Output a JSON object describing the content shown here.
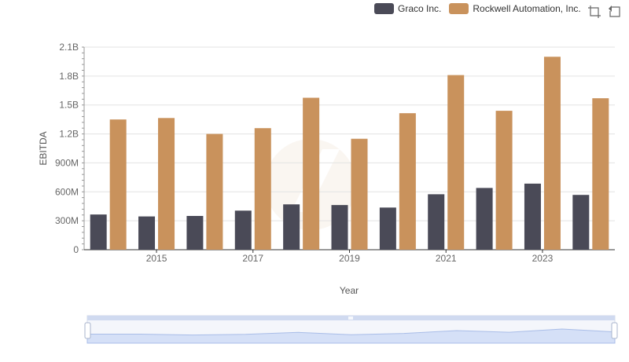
{
  "legend": [
    {
      "name": "Graco Inc.",
      "color": "#4a4a57"
    },
    {
      "name": "Rockwell Automation, Inc.",
      "color": "#c9925c"
    }
  ],
  "toolbar": {
    "zoom_icon": "zoom-select-icon",
    "restore_icon": "restore-icon"
  },
  "chart_data": {
    "type": "bar",
    "categories": [
      "2014",
      "2015",
      "2016",
      "2017",
      "2018",
      "2019",
      "2020",
      "2021",
      "2022",
      "2023",
      "2024"
    ],
    "x_tick_labels": [
      "2015",
      "2017",
      "2019",
      "2021",
      "2023"
    ],
    "series": [
      {
        "name": "Graco Inc.",
        "color": "#4a4a57",
        "values": [
          365000000,
          345000000,
          350000000,
          405000000,
          470000000,
          463000000,
          437000000,
          575000000,
          640000000,
          685000000,
          568000000
        ]
      },
      {
        "name": "Rockwell Automation, Inc.",
        "color": "#c9925c",
        "values": [
          1350000000,
          1365000000,
          1200000000,
          1260000000,
          1575000000,
          1150000000,
          1415000000,
          1810000000,
          1440000000,
          2000000000,
          1570000000
        ]
      }
    ],
    "xlabel": "Year",
    "ylabel": "EBITDA",
    "ylim": [
      0,
      2100000000
    ],
    "y_ticks": [
      {
        "value": 0,
        "label": "0"
      },
      {
        "value": 300000000,
        "label": "300M"
      },
      {
        "value": 600000000,
        "label": "600M"
      },
      {
        "value": 900000000,
        "label": "900M"
      },
      {
        "value": 1200000000,
        "label": "1.2B"
      },
      {
        "value": 1500000000,
        "label": "1.5B"
      },
      {
        "value": 1800000000,
        "label": "1.8B"
      },
      {
        "value": 2100000000,
        "label": "2.1B"
      }
    ],
    "grid": true,
    "legend_position": "top-right",
    "datazoom": {
      "start_percent": 0,
      "end_percent": 100
    }
  }
}
